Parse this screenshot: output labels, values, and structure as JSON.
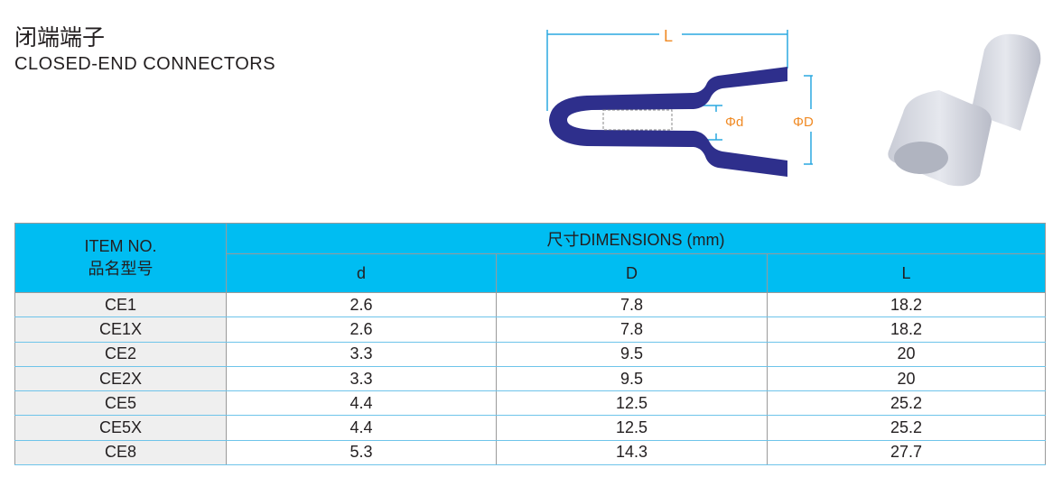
{
  "title_cn": "闭端端子",
  "title_en": "CLOSED-END CONNECTORS",
  "diagram": {
    "label_L": "L",
    "label_d": "Φd",
    "label_D": "ΦD",
    "body_color": "#2e2f8c",
    "dim_color": "#2aa9e0",
    "label_color": "#f08a24"
  },
  "table": {
    "header_color": "#00bdf2",
    "item_header_en": "ITEM NO.",
    "item_header_cn": "品名型号",
    "dims_header": "尺寸DIMENSIONS (mm)",
    "columns": [
      "d",
      "D",
      "L"
    ],
    "rows": [
      {
        "item": "CE1",
        "d": "2.6",
        "D": "7.8",
        "L": "18.2"
      },
      {
        "item": "CE1X",
        "d": "2.6",
        "D": "7.8",
        "L": "18.2"
      },
      {
        "item": "CE2",
        "d": "3.3",
        "D": "9.5",
        "L": "20"
      },
      {
        "item": "CE2X",
        "d": "3.3",
        "D": "9.5",
        "L": "20"
      },
      {
        "item": "CE5",
        "d": "4.4",
        "D": "12.5",
        "L": "25.2"
      },
      {
        "item": "CE5X",
        "d": "4.4",
        "D": "12.5",
        "L": "25.2"
      },
      {
        "item": "CE8",
        "d": "5.3",
        "D": "14.3",
        "L": "27.7"
      }
    ]
  }
}
